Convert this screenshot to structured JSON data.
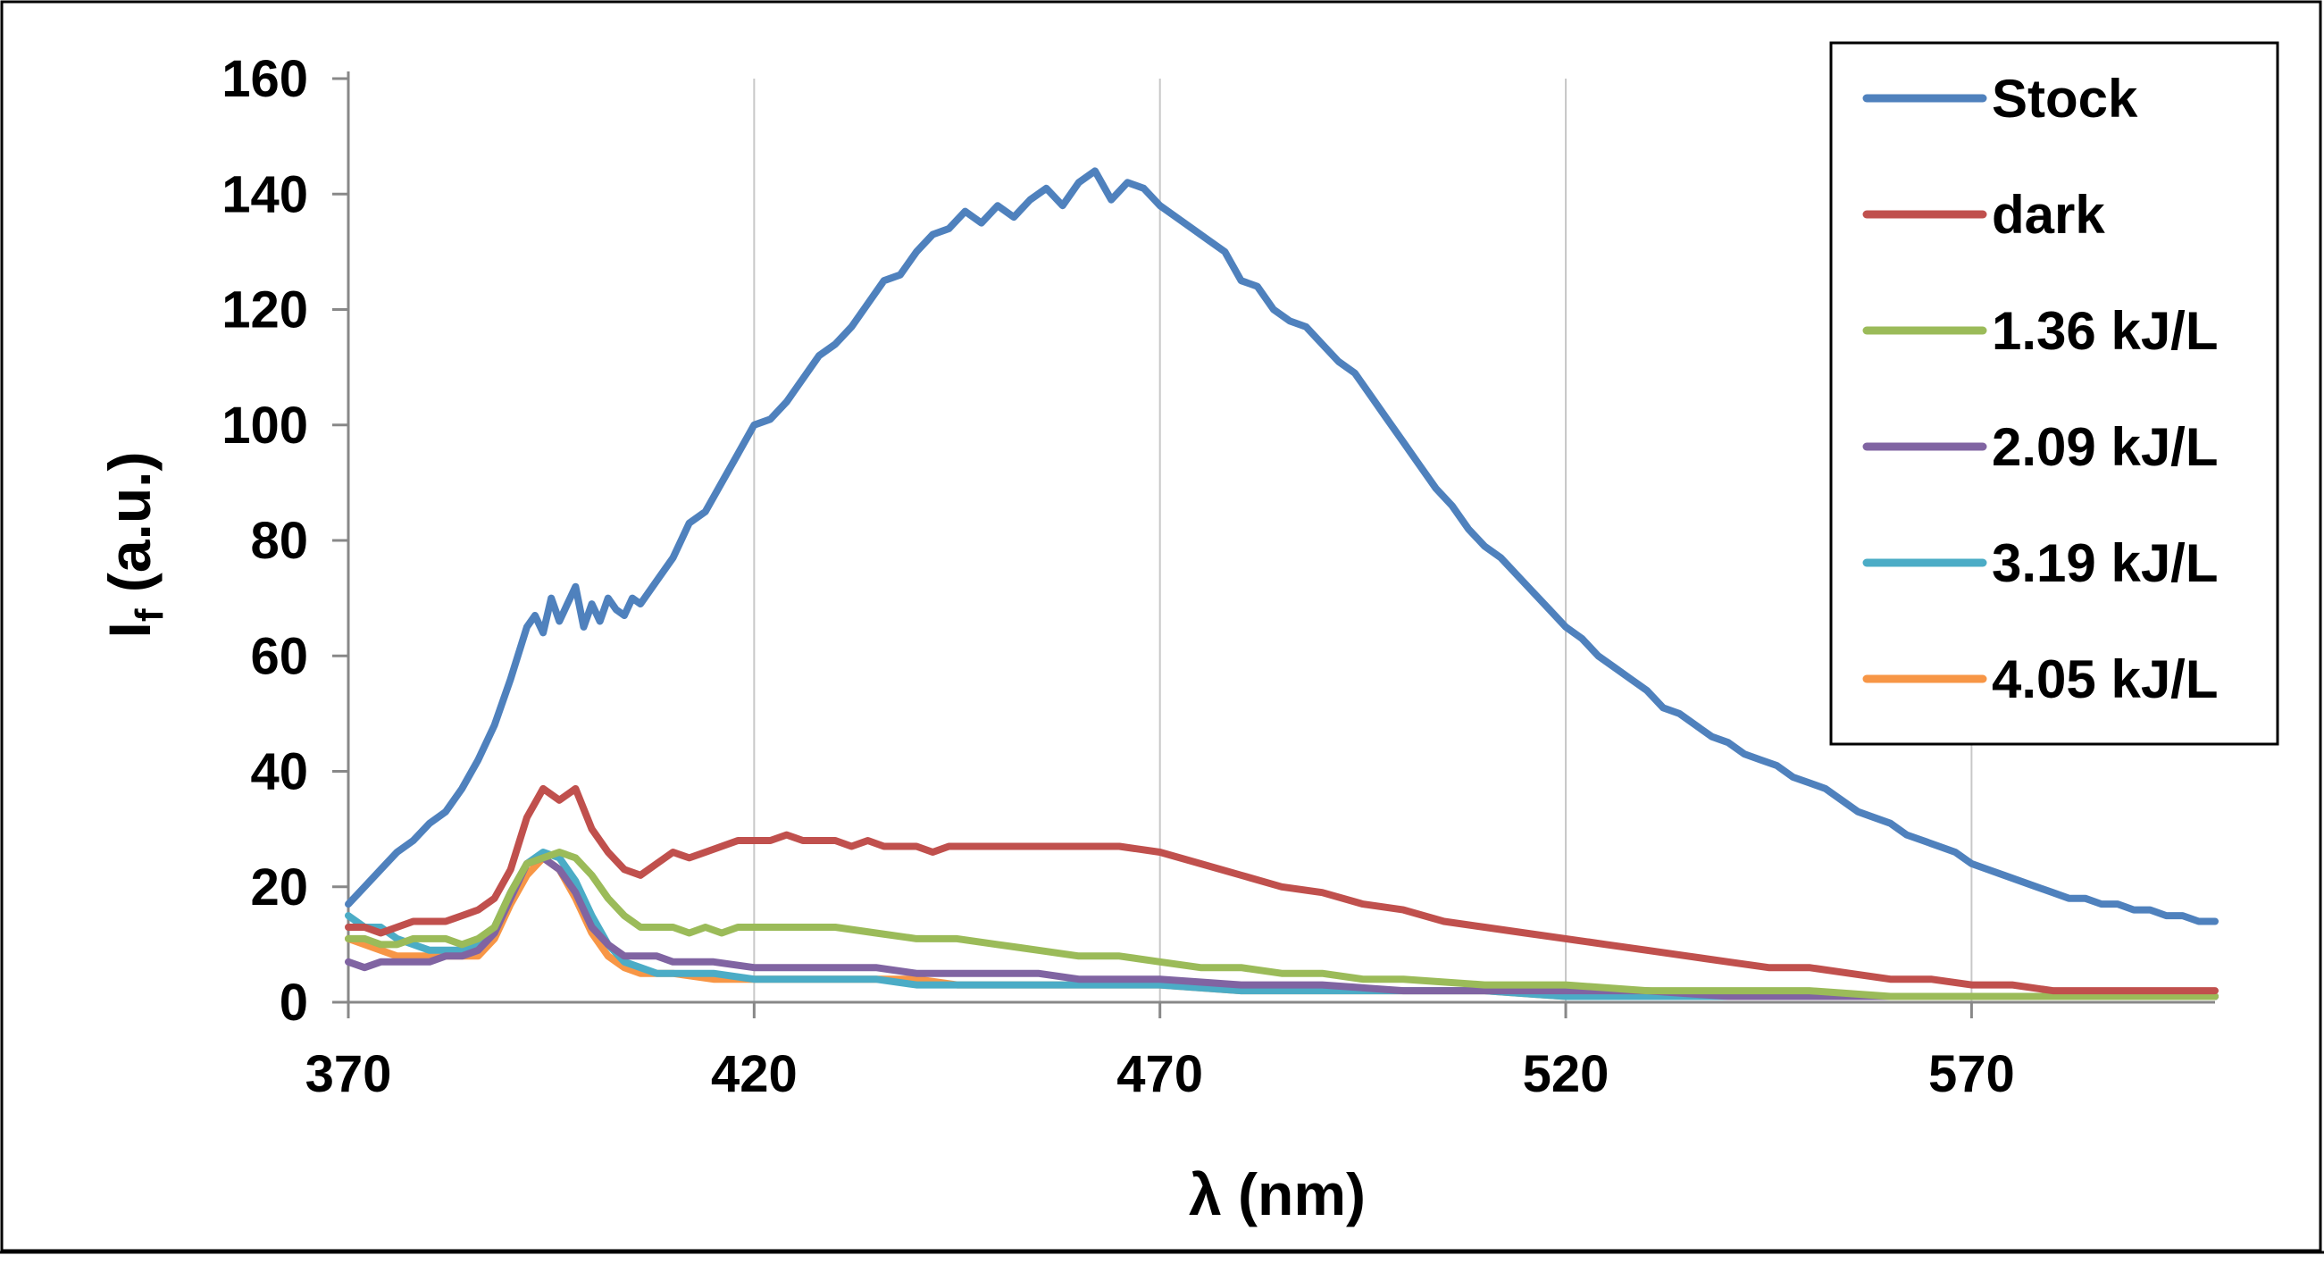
{
  "chart_data": {
    "type": "line",
    "title": "",
    "xlabel": "λ (nm)",
    "ylabel": "I",
    "ylabel_subscript": "f",
    "ylabel_suffix": " (a.u.)",
    "xlim": [
      370,
      600
    ],
    "ylim": [
      0,
      160
    ],
    "xticks": [
      370,
      420,
      470,
      520,
      570
    ],
    "yticks": [
      0,
      20,
      40,
      60,
      80,
      100,
      120,
      140,
      160
    ],
    "grid": {
      "x": true,
      "y": false
    },
    "legend_position": "top-right",
    "series": [
      {
        "name": "Stock",
        "color": "#4f81bd",
        "x": [
          370,
          372,
          374,
          376,
          378,
          380,
          382,
          384,
          386,
          388,
          390,
          392,
          393,
          394,
          395,
          396,
          397,
          398,
          399,
          400,
          401,
          402,
          403,
          404,
          405,
          406,
          408,
          410,
          412,
          414,
          416,
          418,
          420,
          422,
          424,
          426,
          428,
          430,
          432,
          434,
          436,
          438,
          440,
          442,
          444,
          446,
          448,
          450,
          452,
          454,
          456,
          458,
          460,
          462,
          464,
          466,
          468,
          470,
          472,
          474,
          476,
          478,
          480,
          482,
          484,
          486,
          488,
          490,
          492,
          494,
          496,
          498,
          500,
          502,
          504,
          506,
          508,
          510,
          512,
          514,
          516,
          518,
          520,
          522,
          524,
          526,
          528,
          530,
          532,
          534,
          536,
          538,
          540,
          542,
          544,
          546,
          548,
          550,
          552,
          554,
          556,
          558,
          560,
          562,
          564,
          566,
          568,
          570,
          572,
          574,
          576,
          578,
          580,
          582,
          584,
          586,
          588,
          590,
          592,
          594,
          596,
          598,
          600
        ],
        "values": [
          17,
          20,
          23,
          26,
          28,
          31,
          33,
          37,
          42,
          48,
          56,
          65,
          67,
          64,
          70,
          66,
          69,
          72,
          65,
          69,
          66,
          70,
          68,
          67,
          70,
          69,
          73,
          77,
          83,
          85,
          90,
          95,
          100,
          101,
          104,
          108,
          112,
          114,
          117,
          121,
          125,
          126,
          130,
          133,
          134,
          137,
          135,
          138,
          136,
          139,
          141,
          138,
          142,
          144,
          139,
          142,
          141,
          138,
          136,
          134,
          132,
          130,
          125,
          124,
          120,
          118,
          117,
          114,
          111,
          109,
          105,
          101,
          97,
          93,
          89,
          86,
          82,
          79,
          77,
          74,
          71,
          68,
          65,
          63,
          60,
          58,
          56,
          54,
          51,
          50,
          48,
          46,
          45,
          43,
          42,
          41,
          39,
          38,
          37,
          35,
          33,
          32,
          31,
          29,
          28,
          27,
          26,
          24,
          23,
          22,
          21,
          20,
          19,
          18,
          18,
          17,
          17,
          16,
          16,
          15,
          15,
          14,
          14
        ]
      },
      {
        "name": "dark",
        "color": "#c0504d",
        "x": [
          370,
          372,
          374,
          376,
          378,
          380,
          382,
          384,
          386,
          388,
          390,
          392,
          394,
          396,
          398,
          400,
          402,
          404,
          406,
          408,
          410,
          412,
          414,
          416,
          418,
          420,
          422,
          424,
          426,
          428,
          430,
          432,
          434,
          436,
          438,
          440,
          442,
          444,
          446,
          448,
          450,
          455,
          460,
          465,
          470,
          475,
          480,
          485,
          490,
          495,
          500,
          505,
          510,
          515,
          520,
          525,
          530,
          535,
          540,
          545,
          550,
          555,
          560,
          565,
          570,
          575,
          580,
          585,
          590,
          595,
          600
        ],
        "values": [
          13,
          13,
          12,
          13,
          14,
          14,
          14,
          15,
          16,
          18,
          23,
          32,
          37,
          35,
          37,
          30,
          26,
          23,
          22,
          24,
          26,
          25,
          26,
          27,
          28,
          28,
          28,
          29,
          28,
          28,
          28,
          27,
          28,
          27,
          27,
          27,
          26,
          27,
          27,
          27,
          27,
          27,
          27,
          27,
          26,
          24,
          22,
          20,
          19,
          17,
          16,
          14,
          13,
          12,
          11,
          10,
          9,
          8,
          7,
          6,
          6,
          5,
          4,
          4,
          3,
          3,
          2,
          2,
          2,
          2,
          2
        ]
      },
      {
        "name": "1.36 kJ/L",
        "color": "#9bbb59",
        "x": [
          370,
          372,
          374,
          376,
          378,
          380,
          382,
          384,
          386,
          388,
          390,
          392,
          394,
          396,
          398,
          400,
          402,
          404,
          406,
          408,
          410,
          412,
          414,
          416,
          418,
          420,
          425,
          430,
          435,
          440,
          445,
          450,
          455,
          460,
          465,
          470,
          475,
          480,
          485,
          490,
          495,
          500,
          510,
          520,
          530,
          540,
          550,
          560,
          570,
          580,
          590,
          600
        ],
        "values": [
          11,
          11,
          10,
          10,
          11,
          11,
          11,
          10,
          11,
          13,
          19,
          24,
          25,
          26,
          25,
          22,
          18,
          15,
          13,
          13,
          13,
          12,
          13,
          12,
          13,
          13,
          13,
          13,
          12,
          11,
          11,
          10,
          9,
          8,
          8,
          7,
          6,
          6,
          5,
          5,
          4,
          4,
          3,
          3,
          2,
          2,
          2,
          1,
          1,
          1,
          1,
          1
        ]
      },
      {
        "name": "2.09 kJ/L",
        "color": "#8064a2",
        "x": [
          370,
          372,
          374,
          376,
          378,
          380,
          382,
          384,
          386,
          388,
          390,
          392,
          394,
          396,
          398,
          400,
          402,
          404,
          406,
          408,
          410,
          415,
          420,
          425,
          430,
          435,
          440,
          445,
          450,
          455,
          460,
          465,
          470,
          480,
          490,
          500,
          510,
          520,
          530,
          540,
          550,
          560,
          570,
          580,
          590,
          600
        ],
        "values": [
          7,
          6,
          7,
          7,
          7,
          7,
          8,
          8,
          9,
          12,
          18,
          24,
          25,
          23,
          19,
          13,
          10,
          8,
          8,
          8,
          7,
          7,
          6,
          6,
          6,
          6,
          5,
          5,
          5,
          5,
          4,
          4,
          4,
          3,
          3,
          2,
          2,
          2,
          2,
          1,
          1,
          1,
          1,
          1,
          1,
          1
        ]
      },
      {
        "name": "3.19 kJ/L",
        "color": "#4bacc6",
        "x": [
          370,
          372,
          374,
          376,
          378,
          380,
          382,
          384,
          386,
          388,
          390,
          392,
          394,
          396,
          398,
          400,
          402,
          404,
          406,
          408,
          410,
          415,
          420,
          425,
          430,
          435,
          440,
          445,
          450,
          460,
          470,
          480,
          490,
          500,
          510,
          520,
          530,
          540,
          550,
          560,
          570,
          580,
          590,
          600
        ],
        "values": [
          15,
          13,
          13,
          11,
          10,
          9,
          9,
          9,
          10,
          13,
          19,
          24,
          26,
          25,
          21,
          15,
          10,
          7,
          6,
          5,
          5,
          5,
          4,
          4,
          4,
          4,
          3,
          3,
          3,
          3,
          3,
          2,
          2,
          2,
          2,
          1,
          1,
          1,
          1,
          1,
          1,
          1,
          1,
          1
        ]
      },
      {
        "name": "4.05 kJ/L",
        "color": "#f79646",
        "x": [
          370,
          372,
          374,
          376,
          378,
          380,
          382,
          384,
          386,
          388,
          390,
          392,
          394,
          396,
          398,
          400,
          402,
          404,
          406,
          408,
          410,
          415,
          420,
          425,
          430,
          435,
          440,
          445,
          450,
          460,
          470,
          480,
          490,
          500,
          510,
          520,
          530,
          540,
          550,
          560,
          570,
          580,
          590,
          600
        ],
        "values": [
          11,
          10,
          9,
          8,
          8,
          8,
          8,
          8,
          8,
          11,
          17,
          22,
          25,
          23,
          18,
          12,
          8,
          6,
          5,
          5,
          5,
          4,
          4,
          4,
          4,
          4,
          4,
          3,
          3,
          3,
          3,
          2,
          2,
          2,
          2,
          1,
          1,
          1,
          1,
          1,
          1,
          1,
          1,
          1
        ]
      }
    ]
  }
}
